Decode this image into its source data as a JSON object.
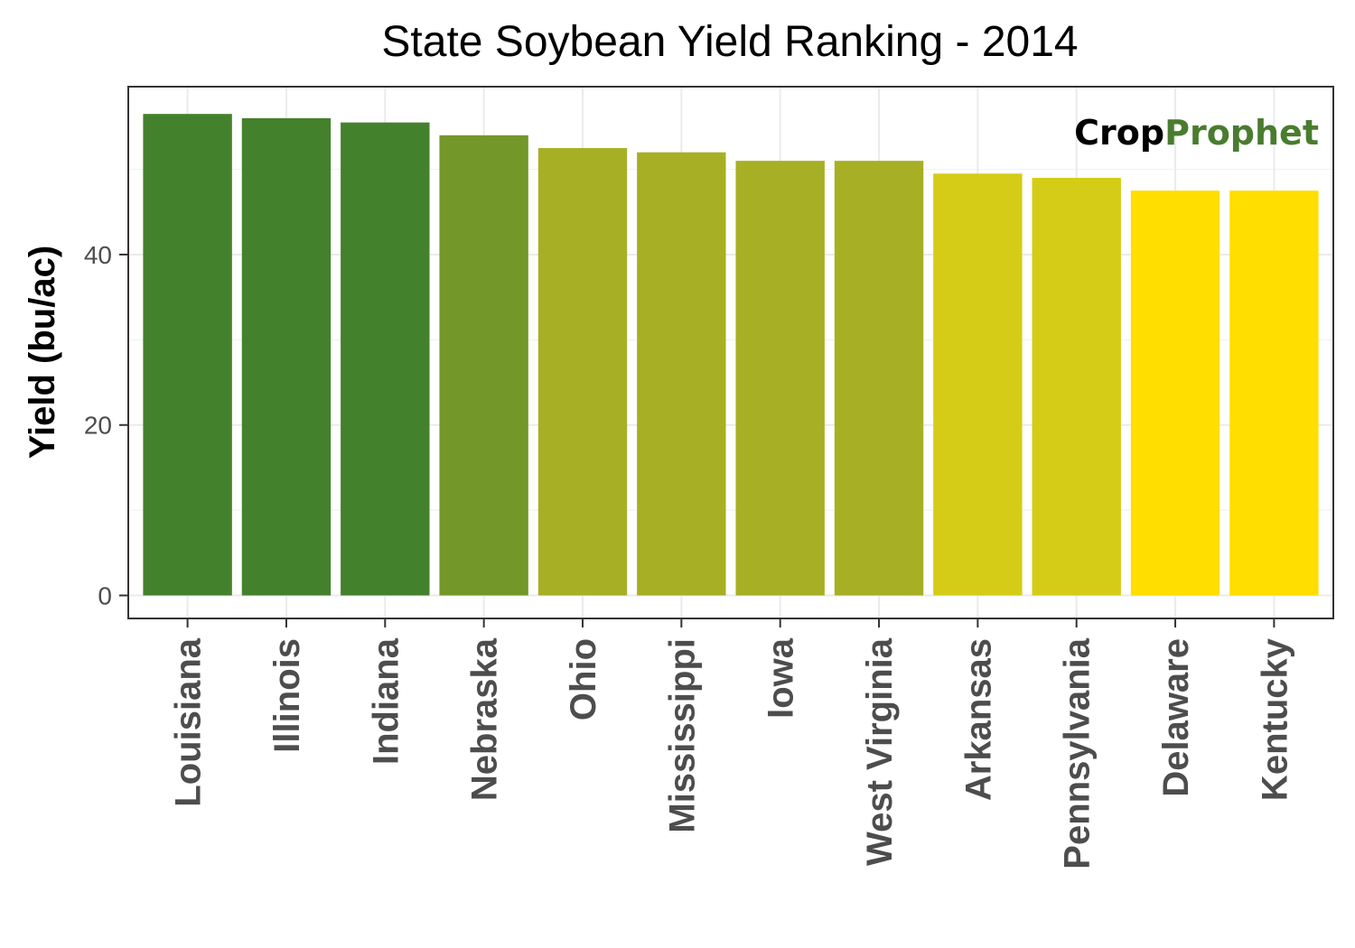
{
  "chart_data": {
    "type": "bar",
    "title": "State Soybean Yield Ranking - 2014",
    "xlabel": "",
    "ylabel": "Yield (bu/ac)",
    "ylim": [
      -2.7,
      59.7
    ],
    "yticks": [
      0,
      20,
      40
    ],
    "grid": true,
    "legend": "none",
    "categories": [
      "Louisiana",
      "Illinois",
      "Indiana",
      "Nebraska",
      "Ohio",
      "Mississippi",
      "Iowa",
      "West Virginia",
      "Arkansas",
      "Pennsylvania",
      "Delaware",
      "Kentucky"
    ],
    "values": [
      56.5,
      56,
      55.5,
      54,
      52.5,
      52,
      51,
      51,
      49.5,
      49,
      47.5,
      47.5
    ],
    "colors": [
      "#44812c",
      "#44812c",
      "#44812c",
      "#739829",
      "#a7b024",
      "#a7b024",
      "#a7b024",
      "#a7b024",
      "#d5cc18",
      "#d5cc18",
      "#ffde00",
      "#ffde00"
    ]
  },
  "watermark": {
    "part1": "Crop",
    "part2": "Prophet",
    "color1": "#000000",
    "color2": "#4a7c2f"
  }
}
